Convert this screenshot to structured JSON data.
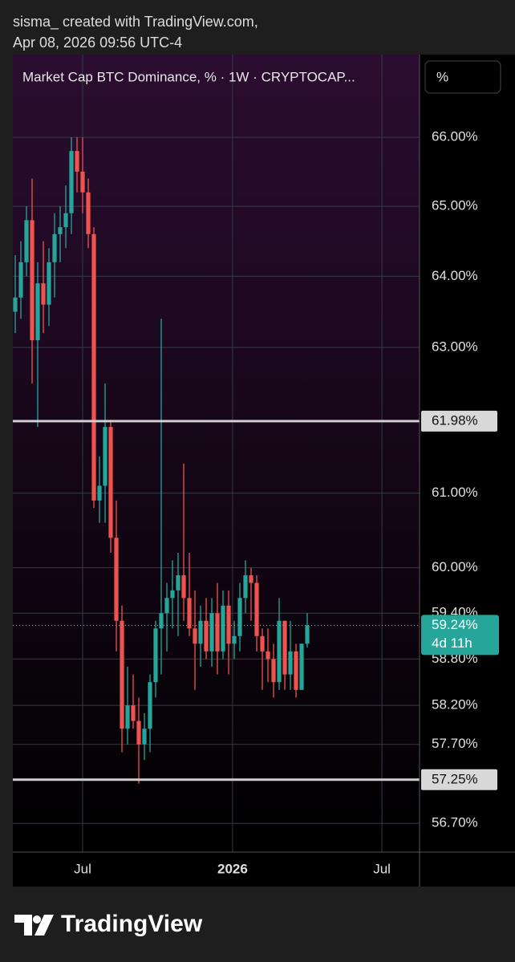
{
  "header": {
    "line1": "sisma_ created with TradingView.com,",
    "line2": "Apr 08, 2026 09:56 UTC-4"
  },
  "chart_data": {
    "type": "candlestick",
    "title": "Market Cap BTC Dominance, % · 1W · CRYPTOCAP...",
    "unit_label": "%",
    "log_scale": true,
    "grid": true,
    "ylim": [
      56.34,
      67.22
    ],
    "yticks": [
      {
        "value": 56.7,
        "label": "56.70%"
      },
      {
        "value": 57.7,
        "label": "57.70%"
      },
      {
        "value": 58.2,
        "label": "58.20%"
      },
      {
        "value": 58.8,
        "label": "58.80%"
      },
      {
        "value": 59.4,
        "label": "59.40%"
      },
      {
        "value": 60,
        "label": "60.00%"
      },
      {
        "value": 61,
        "label": "61.00%"
      },
      {
        "value": 63,
        "label": "63.00%"
      },
      {
        "value": 64,
        "label": "64.00%"
      },
      {
        "value": 65,
        "label": "65.00%"
      },
      {
        "value": 66,
        "label": "66.00%"
      }
    ],
    "xlim": [
      -0.43,
      72
    ],
    "xticks": [
      {
        "value": 12,
        "label": "Jul"
      },
      {
        "value": 38.7,
        "label": "2026"
      },
      {
        "value": 65.3,
        "label": "Jul"
      }
    ],
    "up_color": "#26a69a",
    "down_color": "#ef5350",
    "open": [
      63.5,
      63.7,
      64.2,
      64.8,
      63.1,
      63.9,
      63.6,
      64.2,
      64.6,
      64.7,
      64.9,
      65.8,
      65.5,
      65.2,
      64.6,
      60.9,
      61.1,
      61.9,
      60.4,
      59.3,
      57.9,
      58.2,
      58.0,
      57.7,
      57.9,
      58.5,
      59.2,
      59.4,
      59.6,
      59.7,
      59.9,
      59.6,
      59.2,
      59.0,
      59.3,
      58.9,
      59.4,
      58.9,
      59.5,
      59.0,
      59.1,
      59.6,
      59.9,
      59.8,
      59.1,
      58.9,
      58.8,
      58.5,
      59.3,
      58.6,
      58.9,
      58.4,
      59.0
    ],
    "high": [
      64.3,
      64.5,
      65.0,
      65.4,
      64.2,
      64.5,
      64.4,
      64.9,
      65.0,
      65.3,
      66.0,
      66.0,
      66.0,
      65.4,
      64.7,
      61.5,
      62.5,
      62.0,
      60.9,
      59.5,
      58.7,
      58.6,
      58.3,
      58.1,
      58.6,
      59.3,
      63.4,
      59.8,
      60.1,
      60.2,
      61.4,
      60.2,
      59.7,
      59.5,
      59.6,
      59.6,
      59.8,
      59.7,
      59.7,
      59.3,
      59.8,
      60.1,
      60.0,
      59.9,
      59.2,
      59.2,
      59.0,
      59.6,
      59.3,
      59.3,
      59.0,
      59.0,
      59.4
    ],
    "low": [
      63.2,
      63.4,
      64.0,
      62.5,
      61.9,
      63.2,
      63.3,
      63.7,
      64.2,
      64.4,
      64.6,
      65.2,
      64.9,
      64.4,
      60.8,
      60.6,
      60.6,
      60.2,
      58.9,
      57.6,
      57.7,
      57.9,
      57.2,
      57.5,
      57.6,
      58.3,
      58.6,
      58.9,
      59.2,
      59.1,
      59.3,
      59.1,
      58.4,
      58.7,
      58.8,
      58.7,
      58.6,
      58.8,
      58.6,
      58.8,
      58.9,
      59.4,
      59.3,
      58.9,
      58.4,
      58.5,
      58.3,
      58.4,
      58.4,
      58.4,
      58.3,
      58.4,
      58.95
    ],
    "close": [
      63.7,
      64.2,
      64.8,
      63.1,
      63.9,
      63.6,
      64.2,
      64.6,
      64.7,
      64.9,
      65.8,
      65.5,
      65.2,
      64.6,
      60.9,
      61.1,
      61.9,
      60.4,
      59.3,
      57.9,
      58.2,
      58.0,
      57.7,
      57.9,
      58.5,
      59.2,
      59.4,
      59.6,
      59.7,
      59.9,
      59.6,
      59.2,
      59.0,
      59.3,
      58.9,
      59.4,
      58.9,
      59.5,
      59.0,
      59.1,
      59.6,
      59.9,
      59.8,
      59.1,
      58.9,
      58.8,
      58.5,
      59.3,
      58.6,
      58.9,
      58.4,
      59.0,
      59.24
    ],
    "hlines": [
      {
        "value": 61.98,
        "label": "61.98%"
      },
      {
        "value": 57.25,
        "label": "57.25%"
      }
    ],
    "last_price": {
      "value": 59.24,
      "label": "59.24%",
      "countdown": "4d 11h"
    }
  },
  "footer": {
    "brand": "TradingView"
  }
}
